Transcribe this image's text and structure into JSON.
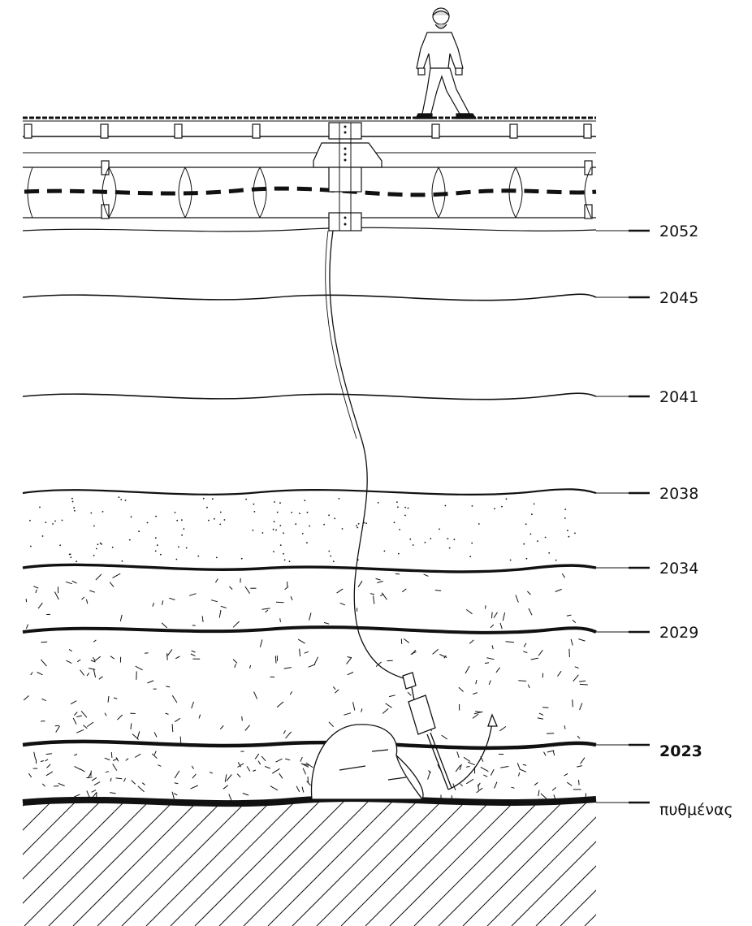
{
  "layers": [
    {
      "label": "2052",
      "bold": false
    },
    {
      "label": "2045",
      "bold": false
    },
    {
      "label": "2041",
      "bold": false
    },
    {
      "label": "2038",
      "bold": false
    },
    {
      "label": "2034",
      "bold": false
    },
    {
      "label": "2029",
      "bold": false
    },
    {
      "label": "2023",
      "bold": true
    },
    {
      "label": "πυθμένας",
      "bold": false
    }
  ],
  "colors": {
    "ink": "#111111",
    "background": "#ffffff"
  }
}
